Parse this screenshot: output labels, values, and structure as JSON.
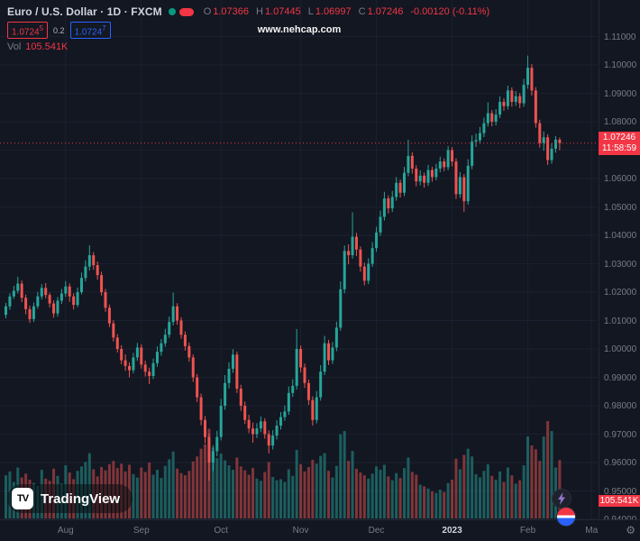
{
  "header": {
    "symbol_title": "Euro / U.S. Dollar · 1D · FXCM",
    "ohlc": {
      "o_label": "O",
      "o": "1.07366",
      "h_label": "H",
      "h": "1.07445",
      "l_label": "L",
      "l": "1.06997",
      "c_label": "C",
      "c": "1.07246",
      "change": "-0.00120 (-0.11%)"
    },
    "bid": {
      "main": "1.0724",
      "sup": "5"
    },
    "spread": "0.2",
    "ask": {
      "main": "1.0724",
      "sup": "7"
    },
    "vol_label": "Vol",
    "vol_value": "105.541K"
  },
  "watermark": "www.nehcap.com",
  "logo": {
    "mark": "TV",
    "text": "TradingView"
  },
  "price_axis": {
    "labels": [
      "1.11000",
      "1.10000",
      "1.09000",
      "1.08000",
      "1.07000",
      "1.06000",
      "1.05000",
      "1.04000",
      "1.03000",
      "1.02000",
      "1.01000",
      "1.00000",
      "0.99000",
      "0.98000",
      "0.97000",
      "0.96000",
      "0.95000",
      "0.94000"
    ],
    "current_badge": {
      "price": "1.07246",
      "countdown": "11:58:59"
    },
    "volume_badge": "105.541K"
  },
  "time_axis": {
    "labels": [
      {
        "text": "Aug",
        "index": 15
      },
      {
        "text": "Sep",
        "index": 34
      },
      {
        "text": "Oct",
        "index": 54
      },
      {
        "text": "Nov",
        "index": 74
      },
      {
        "text": "Dec",
        "index": 93
      },
      {
        "text": "2023",
        "index": 112,
        "emphasis": true
      },
      {
        "text": "Feb",
        "index": 131
      },
      {
        "text": "Ma",
        "index": 147
      }
    ]
  },
  "chart_data": {
    "type": "candlestick",
    "title": "Euro / U.S. Dollar, 1D, FXCM",
    "symbol": "EUR/USD",
    "timeframe": "1D",
    "exchange": "FXCM",
    "price_range": [
      0.94,
      1.11
    ],
    "grid": true,
    "current": {
      "open": 1.07366,
      "high": 1.07445,
      "low": 1.06997,
      "close": 1.07246,
      "change": -0.0012,
      "change_pct": -0.11,
      "volume": "105.541K"
    },
    "colors": {
      "up": "#26a69a",
      "down": "#ef5350",
      "accent_red": "#f23645",
      "accent_blue": "#2962ff",
      "volume_up": "rgba(38,166,154,0.5)",
      "volume_down": "rgba(239,83,80,0.5)"
    },
    "columns": [
      "open",
      "high",
      "low",
      "close",
      "volume_k"
    ],
    "candles": [
      [
        1.012,
        1.0162,
        1.0108,
        1.015,
        78
      ],
      [
        1.015,
        1.0196,
        1.0138,
        1.0185,
        85
      ],
      [
        1.0185,
        1.0222,
        1.0176,
        1.0205,
        66
      ],
      [
        1.0205,
        1.0254,
        1.0195,
        1.023,
        92
      ],
      [
        1.023,
        1.0241,
        1.0165,
        1.018,
        74
      ],
      [
        1.018,
        1.0192,
        1.0122,
        1.014,
        81
      ],
      [
        1.014,
        1.0152,
        1.0092,
        1.0105,
        70
      ],
      [
        1.0105,
        1.0163,
        1.0095,
        1.015,
        64
      ],
      [
        1.015,
        1.0201,
        1.0141,
        1.0185,
        59
      ],
      [
        1.0185,
        1.0228,
        1.0174,
        1.0215,
        88
      ],
      [
        1.0215,
        1.0232,
        1.0178,
        1.019,
        72
      ],
      [
        1.019,
        1.0198,
        1.0146,
        1.016,
        68
      ],
      [
        1.016,
        1.0171,
        1.011,
        1.0125,
        90
      ],
      [
        1.0125,
        1.0183,
        1.0114,
        1.017,
        77
      ],
      [
        1.017,
        1.0211,
        1.0158,
        1.0195,
        63
      ],
      [
        1.0195,
        1.0239,
        1.0183,
        1.022,
        96
      ],
      [
        1.022,
        1.0231,
        1.0166,
        1.0185,
        83
      ],
      [
        1.0185,
        1.0196,
        1.0139,
        1.0155,
        71
      ],
      [
        1.0155,
        1.0216,
        1.0147,
        1.02,
        86
      ],
      [
        1.02,
        1.0269,
        1.0192,
        1.025,
        94
      ],
      [
        1.025,
        1.0312,
        1.0238,
        1.029,
        102
      ],
      [
        1.029,
        1.0365,
        1.0276,
        1.033,
        118
      ],
      [
        1.033,
        1.0341,
        1.0279,
        1.0295,
        89
      ],
      [
        1.0295,
        1.0308,
        1.0244,
        1.026,
        76
      ],
      [
        1.026,
        1.0272,
        1.0188,
        1.02,
        93
      ],
      [
        1.02,
        1.0211,
        1.0131,
        1.0145,
        87
      ],
      [
        1.0145,
        1.0156,
        1.0077,
        1.009,
        98
      ],
      [
        1.009,
        1.0101,
        1.0026,
        1.004,
        104
      ],
      [
        1.004,
        1.0052,
        0.9988,
        1.0,
        91
      ],
      [
        1.0,
        1.0013,
        0.9946,
        0.996,
        99
      ],
      [
        0.996,
        0.9981,
        0.9923,
        0.994,
        85
      ],
      [
        0.994,
        0.9953,
        0.99,
        0.9925,
        97
      ],
      [
        0.9925,
        0.9986,
        0.9914,
        0.997,
        80
      ],
      [
        0.997,
        1.0021,
        0.9958,
        1.0005,
        74
      ],
      [
        1.0005,
        1.0016,
        0.9931,
        0.9945,
        92
      ],
      [
        0.9945,
        0.9959,
        0.9903,
        0.992,
        84
      ],
      [
        0.992,
        0.9934,
        0.9876,
        0.9905,
        101
      ],
      [
        0.9905,
        0.9966,
        0.9894,
        0.995,
        79
      ],
      [
        0.995,
        1.0009,
        0.9937,
        0.999,
        88
      ],
      [
        0.999,
        1.0035,
        0.9976,
        1.002,
        73
      ],
      [
        1.002,
        1.0071,
        1.0008,
        1.005,
        95
      ],
      [
        1.005,
        1.0114,
        1.0039,
        1.0095,
        107
      ],
      [
        1.0095,
        1.0198,
        1.0083,
        1.015,
        121
      ],
      [
        1.015,
        1.0161,
        1.0085,
        1.01,
        90
      ],
      [
        1.01,
        1.0112,
        1.0036,
        1.005,
        82
      ],
      [
        1.005,
        1.0062,
        0.9994,
        1.001,
        78
      ],
      [
        1.001,
        1.0022,
        0.9955,
        0.997,
        86
      ],
      [
        0.997,
        0.9981,
        0.9884,
        0.99,
        103
      ],
      [
        0.99,
        0.9912,
        0.9813,
        0.983,
        112
      ],
      [
        0.983,
        0.9843,
        0.9731,
        0.975,
        126
      ],
      [
        0.975,
        0.9764,
        0.9668,
        0.969,
        134
      ],
      [
        0.969,
        0.9702,
        0.9536,
        0.96,
        162
      ],
      [
        0.96,
        0.9661,
        0.957,
        0.964,
        128
      ],
      [
        0.964,
        0.9712,
        0.9622,
        0.969,
        109
      ],
      [
        0.969,
        0.9824,
        0.9678,
        0.98,
        117
      ],
      [
        0.98,
        0.9908,
        0.9786,
        0.988,
        105
      ],
      [
        0.988,
        0.9953,
        0.9861,
        0.993,
        96
      ],
      [
        0.993,
        0.9999,
        0.9916,
        0.998,
        88
      ],
      [
        0.998,
        0.9991,
        0.9845,
        0.986,
        110
      ],
      [
        0.986,
        0.9874,
        0.9782,
        0.98,
        94
      ],
      [
        0.98,
        0.9815,
        0.9736,
        0.975,
        87
      ],
      [
        0.975,
        0.9768,
        0.9704,
        0.972,
        79
      ],
      [
        0.972,
        0.9741,
        0.967,
        0.97,
        91
      ],
      [
        0.97,
        0.9739,
        0.9686,
        0.972,
        72
      ],
      [
        0.972,
        0.9762,
        0.9707,
        0.9745,
        68
      ],
      [
        0.9745,
        0.9756,
        0.9684,
        0.97,
        84
      ],
      [
        0.97,
        0.9713,
        0.9632,
        0.966,
        102
      ],
      [
        0.966,
        0.9714,
        0.9646,
        0.9695,
        75
      ],
      [
        0.9695,
        0.9749,
        0.9681,
        0.973,
        69
      ],
      [
        0.973,
        0.9778,
        0.9716,
        0.976,
        71
      ],
      [
        0.976,
        0.9801,
        0.9747,
        0.978,
        66
      ],
      [
        0.978,
        0.9868,
        0.9768,
        0.9845,
        89
      ],
      [
        0.9845,
        0.9893,
        0.9831,
        0.987,
        77
      ],
      [
        0.987,
        1.007,
        0.9857,
        1.0,
        124
      ],
      [
        1.0,
        1.0012,
        0.9917,
        0.9935,
        98
      ],
      [
        0.9935,
        0.9948,
        0.9863,
        0.988,
        85
      ],
      [
        0.988,
        0.9892,
        0.9803,
        0.982,
        93
      ],
      [
        0.982,
        0.9833,
        0.973,
        0.975,
        106
      ],
      [
        0.975,
        0.9852,
        0.9738,
        0.983,
        99
      ],
      [
        0.983,
        0.9943,
        0.9818,
        0.992,
        113
      ],
      [
        0.992,
        1.0046,
        0.9908,
        1.002,
        118
      ],
      [
        1.002,
        1.0032,
        0.9943,
        0.996,
        86
      ],
      [
        0.996,
        1.0024,
        0.9947,
        1.0005,
        74
      ],
      [
        1.0005,
        1.0096,
        0.9992,
        1.0075,
        95
      ],
      [
        1.0075,
        1.0238,
        1.0064,
        1.021,
        152
      ],
      [
        1.021,
        1.0364,
        1.0196,
        1.0345,
        158
      ],
      [
        1.0345,
        1.0368,
        1.0298,
        1.033,
        104
      ],
      [
        1.033,
        1.0481,
        1.0318,
        1.0395,
        122
      ],
      [
        1.0395,
        1.0409,
        1.0327,
        1.035,
        90
      ],
      [
        1.035,
        1.0361,
        1.0272,
        1.029,
        83
      ],
      [
        1.029,
        1.0304,
        1.0224,
        1.024,
        78
      ],
      [
        1.024,
        1.0319,
        1.0228,
        1.03,
        72
      ],
      [
        1.03,
        1.0376,
        1.0289,
        1.0355,
        81
      ],
      [
        1.0355,
        1.043,
        1.0342,
        1.041,
        94
      ],
      [
        1.041,
        1.0487,
        1.0398,
        1.0465,
        88
      ],
      [
        1.0465,
        1.0553,
        1.0452,
        1.053,
        97
      ],
      [
        1.053,
        1.0541,
        1.0477,
        1.0495,
        76
      ],
      [
        1.0495,
        1.0556,
        1.0482,
        1.0535,
        69
      ],
      [
        1.0535,
        1.0605,
        1.0522,
        1.0585,
        82
      ],
      [
        1.0585,
        1.0596,
        1.0533,
        1.055,
        73
      ],
      [
        1.055,
        1.0641,
        1.0538,
        1.062,
        91
      ],
      [
        1.062,
        1.0737,
        1.0608,
        1.068,
        110
      ],
      [
        1.068,
        1.0692,
        1.0617,
        1.0635,
        84
      ],
      [
        1.0635,
        1.0647,
        1.0573,
        1.059,
        79
      ],
      [
        1.059,
        1.0629,
        1.0576,
        1.061,
        61
      ],
      [
        1.061,
        1.0621,
        1.0568,
        1.0585,
        58
      ],
      [
        1.0585,
        1.0648,
        1.0574,
        1.063,
        54
      ],
      [
        1.063,
        1.0641,
        1.0589,
        1.0605,
        49
      ],
      [
        1.0605,
        1.0652,
        1.0594,
        1.0635,
        46
      ],
      [
        1.0635,
        1.0677,
        1.0622,
        1.066,
        52
      ],
      [
        1.066,
        1.0671,
        1.0626,
        1.064,
        48
      ],
      [
        1.064,
        1.0714,
        1.0629,
        1.07,
        64
      ],
      [
        1.07,
        1.0711,
        1.0643,
        1.066,
        70
      ],
      [
        1.066,
        1.0671,
        1.0528,
        1.0545,
        108
      ],
      [
        1.0545,
        1.0623,
        1.0532,
        1.0605,
        89
      ],
      [
        1.0605,
        1.0616,
        1.0483,
        1.052,
        115
      ],
      [
        1.052,
        1.0668,
        1.0508,
        1.0645,
        126
      ],
      [
        1.0645,
        1.0752,
        1.0633,
        1.073,
        112
      ],
      [
        1.073,
        1.0758,
        1.0711,
        1.0735,
        80
      ],
      [
        1.0735,
        1.0782,
        1.0722,
        1.076,
        74
      ],
      [
        1.076,
        1.0814,
        1.0746,
        1.0795,
        86
      ],
      [
        1.0795,
        1.0868,
        1.0783,
        1.083,
        98
      ],
      [
        1.083,
        1.0841,
        1.0784,
        1.08,
        77
      ],
      [
        1.08,
        1.0844,
        1.0787,
        1.0825,
        70
      ],
      [
        1.0825,
        1.0889,
        1.0813,
        1.087,
        85
      ],
      [
        1.087,
        1.0883,
        1.0838,
        1.0855,
        66
      ],
      [
        1.0855,
        1.0927,
        1.0843,
        1.091,
        92
      ],
      [
        1.091,
        1.0921,
        1.0853,
        1.087,
        78
      ],
      [
        1.087,
        1.0908,
        1.0856,
        1.089,
        63
      ],
      [
        1.089,
        1.0901,
        1.0848,
        1.0865,
        69
      ],
      [
        1.0865,
        1.0951,
        1.0853,
        1.093,
        96
      ],
      [
        1.093,
        1.1033,
        1.0916,
        1.099,
        148
      ],
      [
        1.099,
        1.1003,
        1.0892,
        1.091,
        132
      ],
      [
        1.091,
        1.0922,
        1.0779,
        1.0795,
        125
      ],
      [
        1.0795,
        1.0807,
        1.0709,
        1.0725,
        104
      ],
      [
        1.0725,
        1.0766,
        1.0698,
        1.0745,
        148
      ],
      [
        1.0745,
        1.0756,
        1.0648,
        1.0665,
        176
      ],
      [
        1.0665,
        1.0724,
        1.0652,
        1.0705,
        158
      ],
      [
        1.0705,
        1.0749,
        1.0691,
        1.0737,
        92
      ],
      [
        1.07366,
        1.07445,
        1.06997,
        1.07246,
        105.5
      ]
    ]
  }
}
